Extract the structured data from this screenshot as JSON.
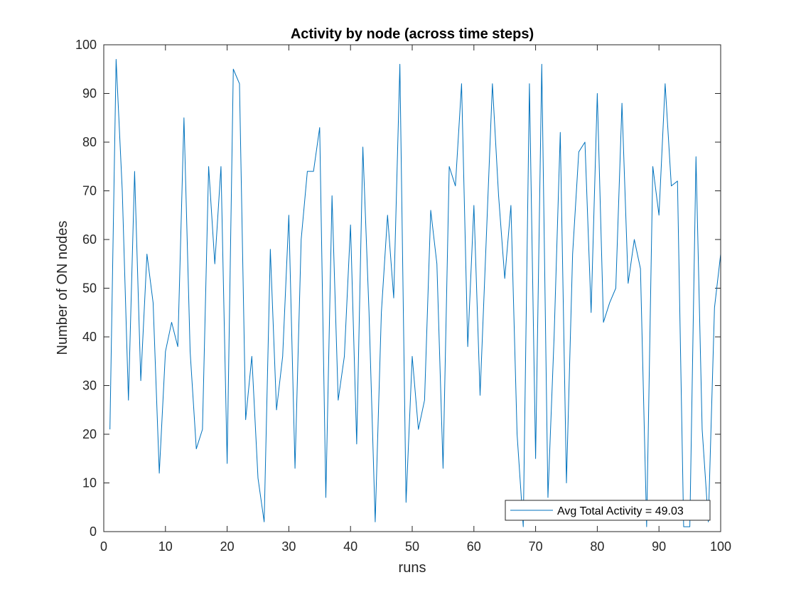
{
  "chart_data": {
    "type": "line",
    "title": "Activity by node (across time steps)",
    "xlabel": "runs",
    "ylabel": "Number of ON nodes",
    "xlim": [
      0,
      100
    ],
    "ylim": [
      0,
      100
    ],
    "xticks": [
      0,
      10,
      20,
      30,
      40,
      50,
      60,
      70,
      80,
      90,
      100
    ],
    "yticks": [
      0,
      10,
      20,
      30,
      40,
      50,
      60,
      70,
      80,
      90,
      100
    ],
    "grid": false,
    "legend_position": "bottom-right",
    "series": [
      {
        "name": "Avg Total Activity = 49.03",
        "color": "#0072BD",
        "x": [
          1,
          2,
          3,
          4,
          5,
          6,
          7,
          8,
          9,
          10,
          11,
          12,
          13,
          14,
          15,
          16,
          17,
          18,
          19,
          20,
          21,
          22,
          23,
          24,
          25,
          26,
          27,
          28,
          29,
          30,
          31,
          32,
          33,
          34,
          35,
          36,
          37,
          38,
          39,
          40,
          41,
          42,
          43,
          44,
          45,
          46,
          47,
          48,
          49,
          50,
          51,
          52,
          53,
          54,
          55,
          56,
          57,
          58,
          59,
          60,
          61,
          62,
          63,
          64,
          65,
          66,
          67,
          68,
          69,
          70,
          71,
          72,
          73,
          74,
          75,
          76,
          77,
          78,
          79,
          80,
          81,
          82,
          83,
          84,
          85,
          86,
          87,
          88,
          89,
          90,
          91,
          92,
          93,
          94,
          95,
          96,
          97,
          98,
          99,
          100
        ],
        "y": [
          21,
          97,
          70,
          27,
          74,
          31,
          57,
          47,
          12,
          37,
          43,
          38,
          85,
          37,
          17,
          21,
          75,
          55,
          75,
          14,
          95,
          92,
          23,
          36,
          11,
          2,
          58,
          25,
          36,
          65,
          13,
          60,
          74,
          74,
          83,
          7,
          69,
          27,
          36,
          63,
          18,
          79,
          45,
          2,
          45,
          65,
          48,
          96,
          6,
          36,
          21,
          27,
          66,
          55,
          13,
          75,
          71,
          92,
          38,
          67,
          28,
          60,
          92,
          69,
          52,
          67,
          20,
          1,
          92,
          15,
          96,
          7,
          40,
          82,
          10,
          57,
          78,
          80,
          45,
          90,
          43,
          47,
          50,
          88,
          51,
          60,
          54,
          1,
          75,
          65,
          92,
          71,
          72,
          1,
          1,
          77,
          21,
          2,
          46,
          57
        ]
      }
    ]
  }
}
